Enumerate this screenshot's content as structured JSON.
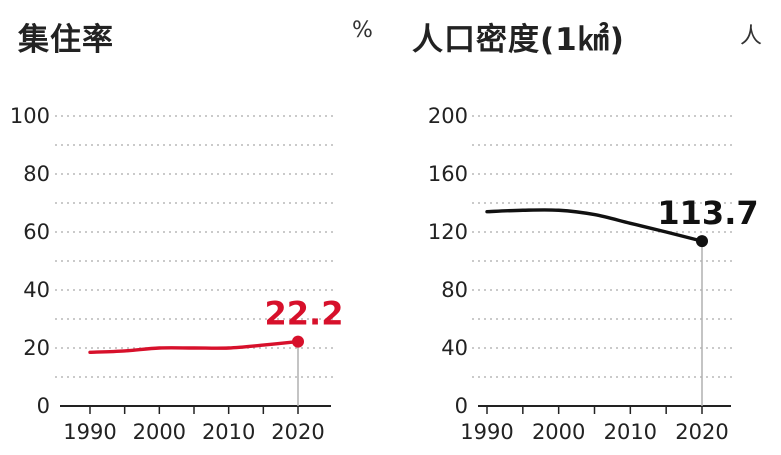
{
  "chart_data": [
    {
      "type": "line",
      "title": "集住率",
      "unit": "%",
      "x": [
        1990,
        1995,
        2000,
        2005,
        2010,
        2015,
        2020
      ],
      "series": [
        {
          "values": [
            18.5,
            19.0,
            20.0,
            20.0,
            20.0,
            21.0,
            22.2
          ],
          "color": "#d7102b"
        }
      ],
      "end_label": "22.2",
      "xticks": [
        "1990",
        "2000",
        "2010",
        "2020"
      ],
      "yticks": [
        "0",
        "20",
        "40",
        "60",
        "80",
        "100"
      ],
      "ylim": [
        0,
        100
      ],
      "grid": true
    },
    {
      "type": "line",
      "title": "人口密度(1㎢)",
      "unit": "人",
      "x": [
        1990,
        1995,
        2000,
        2005,
        2010,
        2015,
        2020
      ],
      "series": [
        {
          "values": [
            134,
            135,
            135,
            132,
            126,
            120,
            113.7
          ],
          "color": "#111111"
        }
      ],
      "end_label": "113.7",
      "xticks": [
        "1990",
        "2000",
        "2010",
        "2020"
      ],
      "yticks": [
        "0",
        "40",
        "80",
        "120",
        "160",
        "200"
      ],
      "ylim": [
        0,
        200
      ],
      "grid": true
    }
  ]
}
